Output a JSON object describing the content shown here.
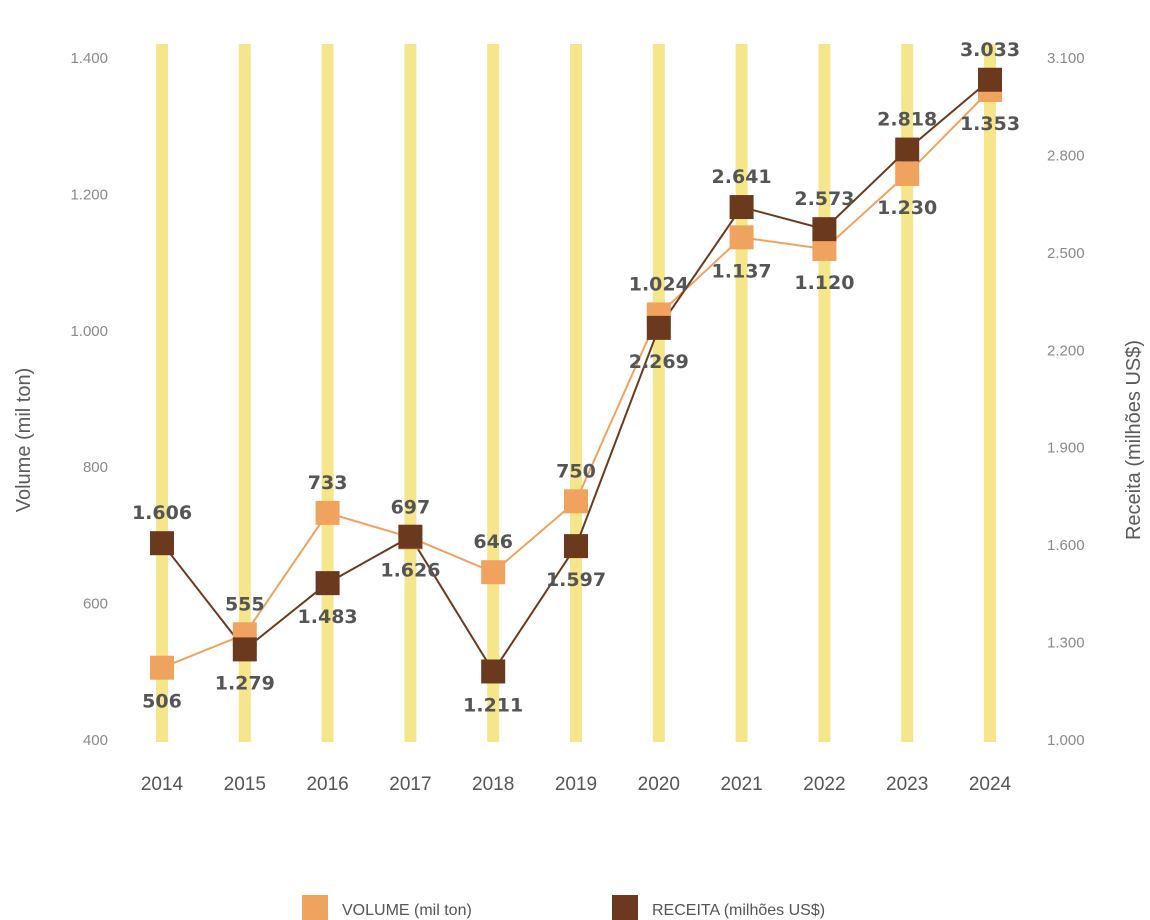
{
  "chart_data": {
    "type": "line",
    "title": "",
    "categories": [
      "2014",
      "2015",
      "2016",
      "2017",
      "2018",
      "2019",
      "2020",
      "2021",
      "2022",
      "2023",
      "2024"
    ],
    "y_left": {
      "label": "Volume (mil ton)",
      "range": [
        400,
        1400
      ],
      "ticks": [
        400,
        600,
        800,
        1000,
        1200,
        1400
      ],
      "tick_labels": [
        "400",
        "600",
        "800",
        "1.000",
        "1.200",
        "1.400"
      ]
    },
    "y_right": {
      "label": "Receita (milhões US$)",
      "range": [
        1000,
        3100
      ],
      "ticks": [
        1000,
        1300,
        1600,
        1900,
        2200,
        2500,
        2800,
        3100
      ],
      "tick_labels": [
        "1.000",
        "1.300",
        "1.600",
        "1.900",
        "2.200",
        "2.500",
        "2.800",
        "3.100"
      ]
    },
    "series": [
      {
        "name": "VOLUME (mil ton)",
        "axis": "left",
        "color": "#F0A35E",
        "values": [
          506,
          555,
          733,
          697,
          646,
          750,
          1024,
          1137,
          1120,
          1230,
          1353
        ],
        "labels": [
          "506",
          "555",
          "733",
          "697",
          "646",
          "750",
          "1.024",
          "1.137",
          "1.120",
          "1.230",
          "1.353"
        ],
        "label_position": [
          "below",
          "above",
          "above",
          "above",
          "above",
          "above",
          "above",
          "below",
          "below",
          "below",
          "below"
        ]
      },
      {
        "name": "RECEITA (milhões US$)",
        "axis": "right",
        "color": "#6B3A1E",
        "values": [
          1606,
          1279,
          1483,
          1626,
          1211,
          1597,
          2269,
          2641,
          2573,
          2818,
          3033
        ],
        "labels": [
          "1.606",
          "1.279",
          "1.483",
          "1.626",
          "1.211",
          "1.597",
          "2.269",
          "2.641",
          "2.573",
          "2.818",
          "3.033"
        ],
        "label_position": [
          "above",
          "below",
          "below",
          "below",
          "below",
          "below",
          "below",
          "above",
          "above",
          "above",
          "above"
        ]
      }
    ],
    "bar_color": "#F5E68C",
    "grid": false,
    "legend_position": "bottom"
  }
}
